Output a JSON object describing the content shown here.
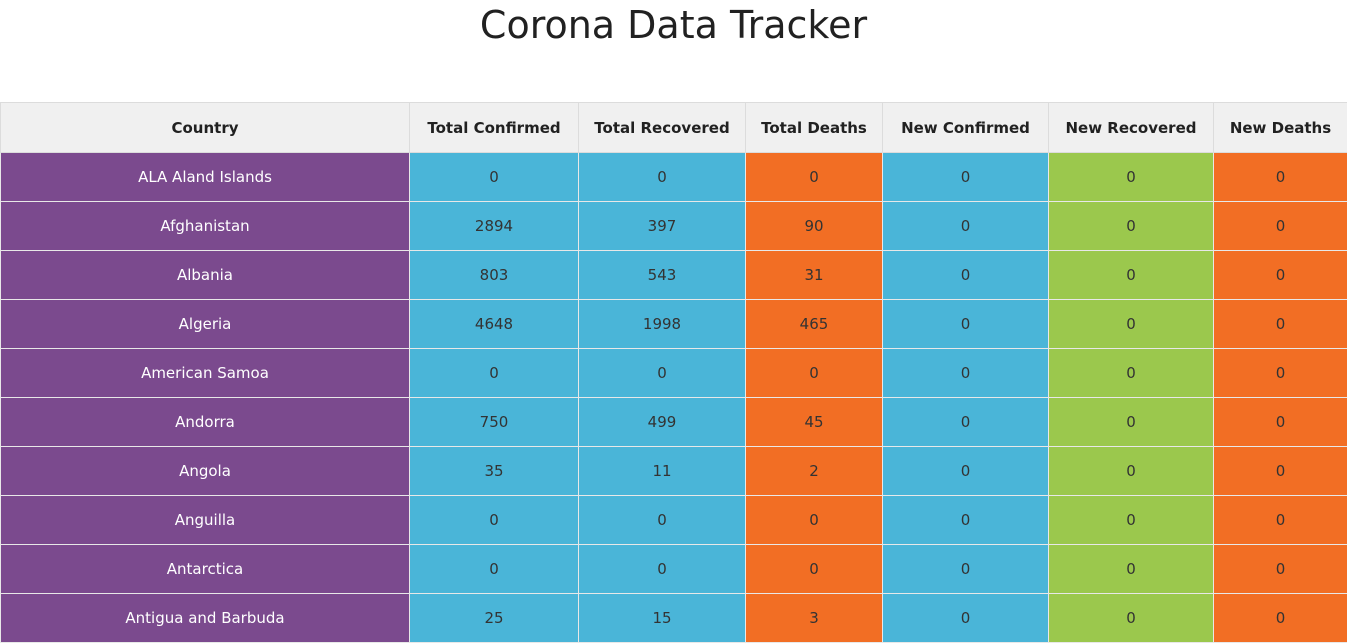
{
  "page": {
    "title": "Corona Data Tracker"
  },
  "colors": {
    "country": "#7b4a8e",
    "confirmed": "#4ab5d8",
    "recovered": "#4ab5d8",
    "deaths": "#f26e24",
    "new_confirmed": "#4ab5d8",
    "new_recovered": "#9bc84d",
    "new_deaths": "#f26e24"
  },
  "table": {
    "headers": [
      "Country",
      "Total Confirmed",
      "Total Recovered",
      "Total Deaths",
      "New Confirmed",
      "New Recovered",
      "New Deaths"
    ],
    "rows": [
      [
        "ALA Aland Islands",
        "0",
        "0",
        "0",
        "0",
        "0",
        "0"
      ],
      [
        "Afghanistan",
        "2894",
        "397",
        "90",
        "0",
        "0",
        "0"
      ],
      [
        "Albania",
        "803",
        "543",
        "31",
        "0",
        "0",
        "0"
      ],
      [
        "Algeria",
        "4648",
        "1998",
        "465",
        "0",
        "0",
        "0"
      ],
      [
        "American Samoa",
        "0",
        "0",
        "0",
        "0",
        "0",
        "0"
      ],
      [
        "Andorra",
        "750",
        "499",
        "45",
        "0",
        "0",
        "0"
      ],
      [
        "Angola",
        "35",
        "11",
        "2",
        "0",
        "0",
        "0"
      ],
      [
        "Anguilla",
        "0",
        "0",
        "0",
        "0",
        "0",
        "0"
      ],
      [
        "Antarctica",
        "0",
        "0",
        "0",
        "0",
        "0",
        "0"
      ],
      [
        "Antigua and Barbuda",
        "25",
        "15",
        "3",
        "0",
        "0",
        "0"
      ]
    ]
  }
}
